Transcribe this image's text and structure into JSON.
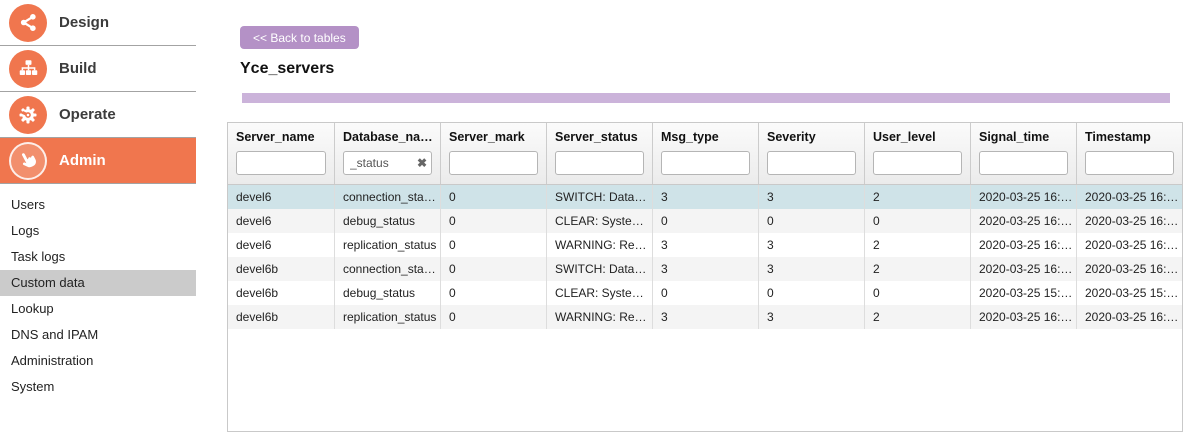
{
  "sidebar": {
    "main_items": [
      {
        "label": "Design",
        "icon": "share-icon",
        "active": false
      },
      {
        "label": "Build",
        "icon": "sitemap-icon",
        "active": false
      },
      {
        "label": "Operate",
        "icon": "gear-icon",
        "active": false
      },
      {
        "label": "Admin",
        "icon": "hand-pointer-icon",
        "active": true
      }
    ],
    "sub_items": [
      {
        "label": "Users",
        "active": false
      },
      {
        "label": "Logs",
        "active": false
      },
      {
        "label": "Task logs",
        "active": false
      },
      {
        "label": "Custom data",
        "active": true
      },
      {
        "label": "Lookup",
        "active": false
      },
      {
        "label": "DNS and IPAM",
        "active": false
      },
      {
        "label": "Administration",
        "active": false
      },
      {
        "label": "System",
        "active": false
      }
    ]
  },
  "content": {
    "back_button_label": "<< Back to tables",
    "title": "Yce_servers"
  },
  "icons": {
    "clear_glyph": "✖"
  },
  "colors": {
    "accent_orange": "#f0764e",
    "accent_purple_button": "#b491c6",
    "accent_purple_bar": "#cbb3da",
    "selected_row": "#cfe3e8",
    "alt_row": "#f4f4f4",
    "sub_active_bg": "#cbcbcb"
  },
  "table": {
    "selected_row_index": 0,
    "columns": [
      {
        "label": "Server_name",
        "filter": "",
        "has_clear": false
      },
      {
        "label": "Database_na…",
        "filter": "_status",
        "has_clear": true
      },
      {
        "label": "Server_mark",
        "filter": "",
        "has_clear": false
      },
      {
        "label": "Server_status",
        "filter": "",
        "has_clear": false
      },
      {
        "label": "Msg_type",
        "filter": "",
        "has_clear": false
      },
      {
        "label": "Severity",
        "filter": "",
        "has_clear": false
      },
      {
        "label": "User_level",
        "filter": "",
        "has_clear": false
      },
      {
        "label": "Signal_time",
        "filter": "",
        "has_clear": false
      },
      {
        "label": "Timestamp",
        "filter": "",
        "has_clear": false
      }
    ],
    "rows": [
      [
        "devel6",
        "connection_sta…",
        "0",
        "SWITCH: Data…",
        "3",
        "3",
        "2",
        "2020-03-25 16:…",
        "2020-03-25 16:…"
      ],
      [
        "devel6",
        "debug_status",
        "0",
        "CLEAR: Syste…",
        "0",
        "0",
        "0",
        "2020-03-25 16:…",
        "2020-03-25 16:…"
      ],
      [
        "devel6",
        "replication_status",
        "0",
        "WARNING: Re…",
        "3",
        "3",
        "2",
        "2020-03-25 16:…",
        "2020-03-25 16:…"
      ],
      [
        "devel6b",
        "connection_sta…",
        "0",
        "SWITCH: Data…",
        "3",
        "3",
        "2",
        "2020-03-25 16:…",
        "2020-03-25 16:…"
      ],
      [
        "devel6b",
        "debug_status",
        "0",
        "CLEAR: Syste…",
        "0",
        "0",
        "0",
        "2020-03-25 15:…",
        "2020-03-25 15:…"
      ],
      [
        "devel6b",
        "replication_status",
        "0",
        "WARNING: Re…",
        "3",
        "3",
        "2",
        "2020-03-25 16:…",
        "2020-03-25 16:…"
      ]
    ]
  }
}
